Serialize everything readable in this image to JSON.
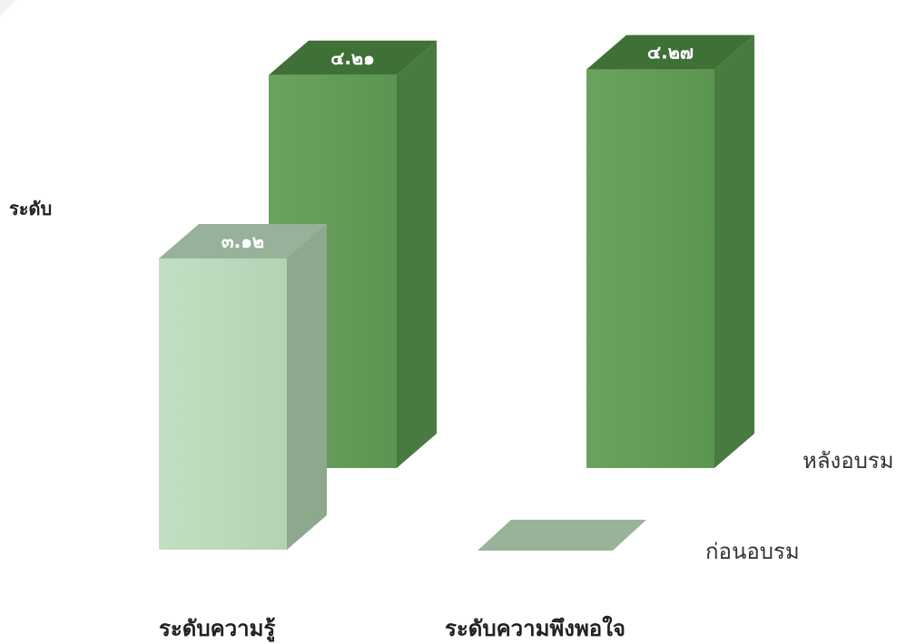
{
  "chart_data": {
    "type": "bar",
    "categories": [
      "ระดับความรู้",
      "ระดับความพึงพอใจ"
    ],
    "series": [
      {
        "name": "ก่อนอบรม",
        "values": [
          3.12,
          null
        ],
        "value_labels": [
          "๓.๑๒",
          ""
        ],
        "color": "#b8d6b8"
      },
      {
        "name": "หลังอบรม",
        "values": [
          4.21,
          4.27
        ],
        "value_labels": [
          "๔.๒๑",
          "๔.๒๗"
        ],
        "color": "#5f9a55"
      }
    ],
    "ylabel": "ระดับ",
    "xlabel": "",
    "ylim": [
      0,
      4.6
    ],
    "legend_position": "right",
    "style": "3d"
  }
}
